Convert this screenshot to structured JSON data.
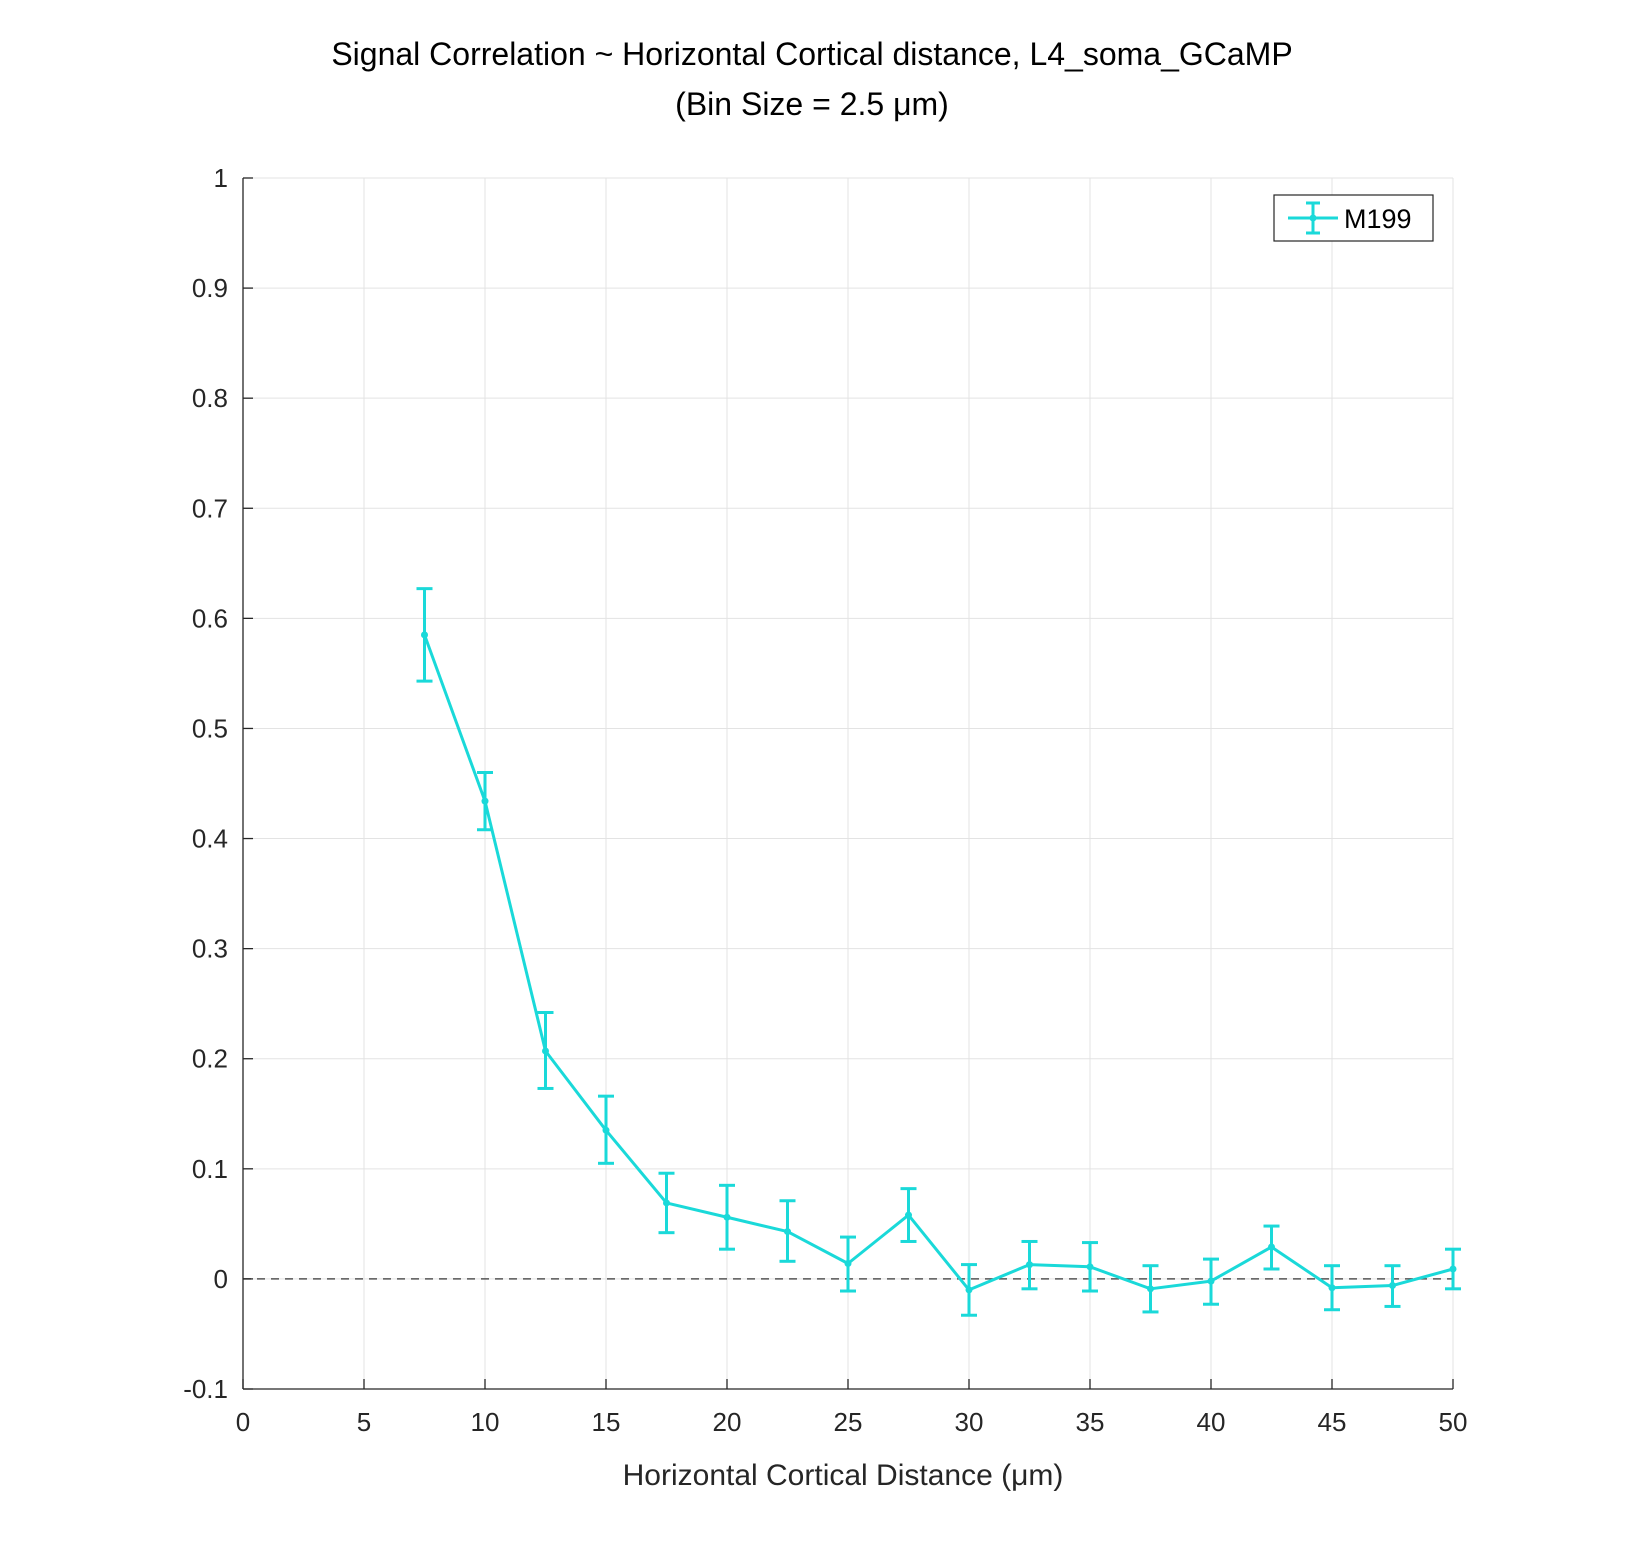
{
  "chart_data": {
    "type": "line",
    "title": "Signal Correlation ~ Horizontal Cortical distance, L4_soma_GCaMP",
    "subtitle": "(Bin Size = 2.5 μm)",
    "xlabel": "Horizontal Cortical Distance (μm)",
    "ylabel": "",
    "xlim": [
      0,
      50
    ],
    "ylim": [
      -0.1,
      1
    ],
    "xticks": [
      0,
      5,
      10,
      15,
      20,
      25,
      30,
      35,
      40,
      45,
      50
    ],
    "xtick_labels": [
      "0",
      "5",
      "10",
      "15",
      "20",
      "25",
      "30",
      "35",
      "40",
      "45",
      "50"
    ],
    "yticks": [
      -0.1,
      0,
      0.1,
      0.2,
      0.3,
      0.4,
      0.5,
      0.6,
      0.7,
      0.8,
      0.9,
      1
    ],
    "ytick_labels": [
      "-0.1",
      "0",
      "0.1",
      "0.2",
      "0.3",
      "0.4",
      "0.5",
      "0.6",
      "0.7",
      "0.8",
      "0.9",
      "1"
    ],
    "grid": true,
    "legend_position": "top-right",
    "reference_line": {
      "y": 0,
      "style": "dashed",
      "color": "#555555"
    },
    "series": [
      {
        "name": "M199",
        "color": "#1ad9d9",
        "x": [
          7.5,
          10,
          12.5,
          15,
          17.5,
          20,
          22.5,
          25,
          27.5,
          30,
          32.5,
          35,
          37.5,
          40,
          42.5,
          45,
          47.5,
          50
        ],
        "y": [
          0.585,
          0.434,
          0.207,
          0.135,
          0.069,
          0.056,
          0.043,
          0.014,
          0.058,
          -0.01,
          0.013,
          0.011,
          -0.009,
          -0.002,
          0.029,
          -0.008,
          -0.006,
          0.009
        ],
        "err_low": [
          0.543,
          0.408,
          0.173,
          0.105,
          0.042,
          0.027,
          0.016,
          -0.011,
          0.034,
          -0.033,
          -0.009,
          -0.011,
          -0.03,
          -0.023,
          0.009,
          -0.028,
          -0.025,
          -0.009
        ],
        "err_high": [
          0.627,
          0.46,
          0.242,
          0.166,
          0.096,
          0.085,
          0.071,
          0.038,
          0.082,
          0.013,
          0.034,
          0.033,
          0.012,
          0.018,
          0.048,
          0.012,
          0.012,
          0.027
        ]
      }
    ]
  }
}
